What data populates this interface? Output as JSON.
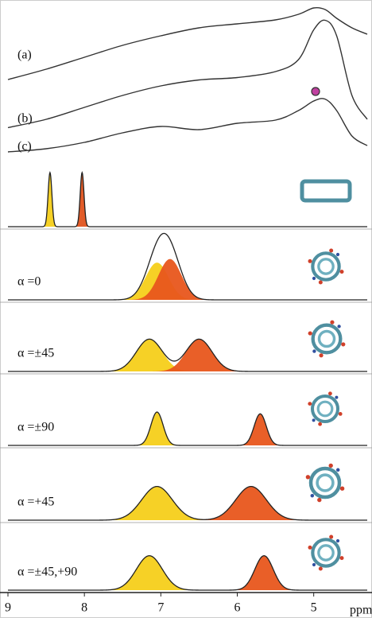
{
  "chart_data": {
    "type": "line",
    "xlim": [
      9,
      4.3
    ],
    "xticks": [
      9,
      8,
      7,
      6,
      5
    ],
    "xlabel": "ppm",
    "x": [
      9,
      8.5,
      8,
      7.5,
      7,
      6.5,
      6,
      5.5,
      5.2,
      5,
      4.85,
      4.7,
      4.5,
      4.3
    ],
    "series": [
      {
        "name": "(a)",
        "color": "#333333",
        "values": [
          0.05,
          0.18,
          0.33,
          0.48,
          0.6,
          0.7,
          0.75,
          0.8,
          0.87,
          0.95,
          0.93,
          0.82,
          0.7,
          0.62
        ]
      },
      {
        "name": "(b)",
        "color": "#333333",
        "values": [
          0.03,
          0.1,
          0.2,
          0.3,
          0.38,
          0.43,
          0.45,
          0.5,
          0.6,
          0.85,
          0.93,
          0.8,
          0.3,
          0.1
        ]
      },
      {
        "name": "(c)",
        "color": "#333333",
        "values": [
          0.05,
          0.1,
          0.2,
          0.35,
          0.45,
          0.4,
          0.5,
          0.55,
          0.7,
          0.85,
          0.88,
          0.7,
          0.3,
          0.15
        ]
      }
    ],
    "panels": [
      {
        "peaks": [
          {
            "center": 8.45,
            "height": 1,
            "width": 0.025,
            "color": "#f5cf1a"
          },
          {
            "center": 8.03,
            "height": 1,
            "width": 0.025,
            "color": "#e0531d"
          }
        ]
      },
      {
        "label": "α =0",
        "peaks": [
          {
            "center": 7.05,
            "height": 0.62,
            "width": 0.15,
            "color": "#f5cf1a"
          },
          {
            "center": 6.88,
            "height": 0.68,
            "width": 0.15,
            "color": "#e8561c"
          }
        ]
      },
      {
        "label": "α =±45",
        "peaks": [
          {
            "center": 7.15,
            "height": 0.55,
            "width": 0.17,
            "color": "#f5cf1a"
          },
          {
            "center": 6.5,
            "height": 0.55,
            "width": 0.17,
            "color": "#e8561c"
          }
        ]
      },
      {
        "label": "α =±90",
        "peaks": [
          {
            "center": 7.05,
            "height": 0.55,
            "width": 0.08,
            "color": "#f5cf1a"
          },
          {
            "center": 5.7,
            "height": 0.52,
            "width": 0.08,
            "color": "#e8561c"
          }
        ]
      },
      {
        "label": "α =+45",
        "peaks": [
          {
            "center": 7.05,
            "height": 0.55,
            "width": 0.2,
            "color": "#f5cf1a"
          },
          {
            "center": 5.82,
            "height": 0.55,
            "width": 0.2,
            "color": "#e8561c"
          }
        ]
      },
      {
        "label": "α =±45,+90",
        "peaks": [
          {
            "center": 7.15,
            "height": 0.6,
            "width": 0.17,
            "color": "#f5cf1a"
          },
          {
            "center": 5.65,
            "height": 0.6,
            "width": 0.12,
            "color": "#e8561c"
          }
        ]
      }
    ]
  }
}
